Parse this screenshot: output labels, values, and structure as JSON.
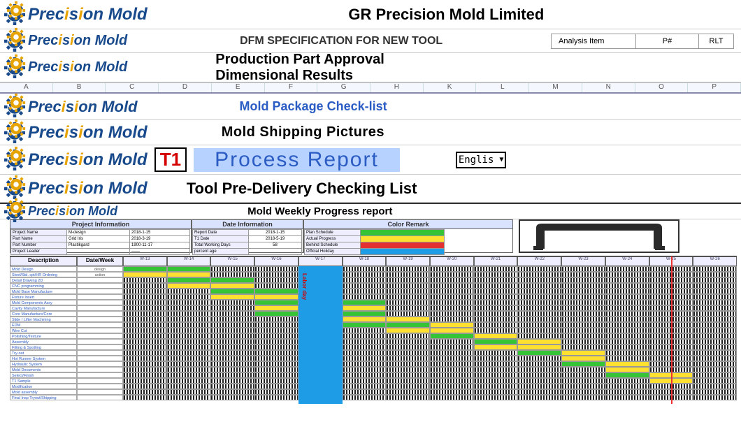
{
  "company": {
    "name": "GR Precision Mold",
    "title_full": "GR Precision Mold Limited",
    "gr_text": "GR",
    "word_prefix": "Prec",
    "word_i": "i",
    "word_mid": "s",
    "word_i2": "i",
    "word_suffix": "on Mold"
  },
  "sections": {
    "dfm": "DFM SPECIFICATION FOR NEW TOOL",
    "ppap_line1": "Production Part Approval",
    "ppap_line2": "Dimensional Results",
    "checklist": "Mold Package Check-list",
    "shipping": "Mold Shipping Pictures",
    "process_badge": "T1",
    "process": "Process Report",
    "predelivery": "Tool Pre-Delivery Checking List",
    "weekly": "Mold Weekly Progress report"
  },
  "side_boxes": {
    "b1": "Analysis Item",
    "b2": "P#",
    "b3": "RLT"
  },
  "lang": "Englis",
  "col_letters": [
    "A",
    "B",
    "C",
    "D",
    "E",
    "F",
    "G",
    "H",
    "K",
    "L",
    "M",
    "N",
    "O",
    "P"
  ],
  "info": {
    "project": {
      "title": "Project Information",
      "rows": [
        [
          "Project Name",
          "M-design",
          "2018-1-15"
        ],
        [
          "Part Name",
          "Grid Iris",
          "2018-3-19"
        ],
        [
          "Part Number",
          "Plastikgard",
          "1900-11-17"
        ],
        [
          "Project Leader",
          "",
          "——"
        ]
      ]
    },
    "date": {
      "title": "Date Information",
      "rows": [
        [
          "Report Date",
          "2018-1-15"
        ],
        [
          "T1 Date",
          "2018-5-19"
        ],
        [
          "Total Working Days",
          "58"
        ],
        [
          "percent age",
          ""
        ]
      ]
    },
    "color": {
      "title": "Color Remark",
      "rows": [
        [
          "Plan Schedule",
          "#36c436"
        ],
        [
          "Actual Progress",
          "#ffe030"
        ],
        [
          "Behind Schedule",
          "#e33030"
        ],
        [
          "Official Holiday",
          "#1e9de6"
        ]
      ]
    }
  },
  "gantt": {
    "desc_header": "Description",
    "date_header": "Date/Week",
    "labor_label": "Labor day",
    "weeks": [
      "W-13",
      "W-14",
      "W-15",
      "W-16",
      "W-17",
      "W-18",
      "W-19",
      "W-20",
      "W-21",
      "W-22",
      "W-23",
      "W-24",
      "W-25",
      "W-26"
    ],
    "n_cells": 14,
    "labor_col_index": 4,
    "red_line_index": 12,
    "tasks": [
      {
        "name": "Mold Design",
        "date": "design",
        "bars": [
          [
            0,
            "g"
          ],
          [
            1,
            "g"
          ]
        ]
      },
      {
        "name": "Steel/Std. cpt/HR Ordering",
        "date": "action",
        "bars": [
          [
            0,
            "y"
          ],
          [
            1,
            "y"
          ]
        ]
      },
      {
        "name": "Detail Drawing 2D",
        "date": "",
        "bars": [
          [
            1,
            "g"
          ],
          [
            2,
            "g"
          ]
        ]
      },
      {
        "name": "CNC programming",
        "date": "",
        "bars": [
          [
            1,
            "y"
          ],
          [
            2,
            "y"
          ]
        ]
      },
      {
        "name": "Mold Base Manufacture",
        "date": "",
        "bars": [
          [
            2,
            "g"
          ],
          [
            3,
            "g"
          ]
        ]
      },
      {
        "name": "Fixture Insert",
        "date": "",
        "bars": [
          [
            2,
            "y"
          ],
          [
            3,
            "y"
          ]
        ]
      },
      {
        "name": "Mold Components Assy",
        "date": "",
        "bars": [
          [
            3,
            "g"
          ],
          [
            4,
            "g"
          ],
          [
            5,
            "g"
          ]
        ]
      },
      {
        "name": "Cavity Manufacture",
        "date": "",
        "bars": [
          [
            3,
            "y"
          ],
          [
            5,
            "y"
          ]
        ]
      },
      {
        "name": "Core Manufacture/Core",
        "date": "",
        "bars": [
          [
            3,
            "g"
          ],
          [
            4,
            "y"
          ],
          [
            5,
            "g"
          ]
        ]
      },
      {
        "name": "Slide / Lifter Machining",
        "date": "",
        "bars": [
          [
            5,
            "y"
          ],
          [
            6,
            "y"
          ]
        ]
      },
      {
        "name": "EDM",
        "date": "",
        "bars": [
          [
            5,
            "g"
          ],
          [
            6,
            "g"
          ],
          [
            7,
            "y"
          ]
        ]
      },
      {
        "name": "Wire Cut",
        "date": "",
        "bars": [
          [
            6,
            "y"
          ],
          [
            7,
            "y"
          ]
        ]
      },
      {
        "name": "Polishing/Texture",
        "date": "",
        "bars": [
          [
            7,
            "g"
          ],
          [
            8,
            "y"
          ]
        ]
      },
      {
        "name": "Assembly",
        "date": "",
        "bars": [
          [
            8,
            "g"
          ],
          [
            9,
            "y"
          ]
        ]
      },
      {
        "name": "Fitting & Spotting",
        "date": "",
        "bars": [
          [
            8,
            "y"
          ],
          [
            9,
            "y"
          ]
        ]
      },
      {
        "name": "Try-out",
        "date": "",
        "bars": [
          [
            9,
            "g"
          ],
          [
            10,
            "y"
          ]
        ]
      },
      {
        "name": "Hot Runner System",
        "date": "",
        "bars": [
          [
            10,
            "y"
          ]
        ]
      },
      {
        "name": "Hydraulic System",
        "date": "",
        "bars": [
          [
            10,
            "g"
          ],
          [
            11,
            "y"
          ]
        ]
      },
      {
        "name": "Mold Documents",
        "date": "",
        "bars": [
          [
            11,
            "y"
          ]
        ]
      },
      {
        "name": "Select/Finish",
        "date": "",
        "bars": [
          [
            11,
            "g"
          ],
          [
            12,
            "y"
          ]
        ]
      },
      {
        "name": "T1 Sample",
        "date": "",
        "bars": [
          [
            12,
            "y"
          ]
        ]
      },
      {
        "name": "Modification",
        "date": "",
        "bars": []
      },
      {
        "name": "Mold assembly",
        "date": "",
        "bars": []
      },
      {
        "name": "Final Insp Tryout/Shipping",
        "date": "",
        "bars": []
      }
    ]
  },
  "colors": {
    "brand_blue": "#184a8c",
    "accent_orange": "#e7a300",
    "link_blue": "#2b5cc4",
    "highlight_bg": "#b7d2ff",
    "green": "#36c436",
    "yellow": "#ffe030",
    "red": "#e33030",
    "holiday": "#1e9de6"
  }
}
